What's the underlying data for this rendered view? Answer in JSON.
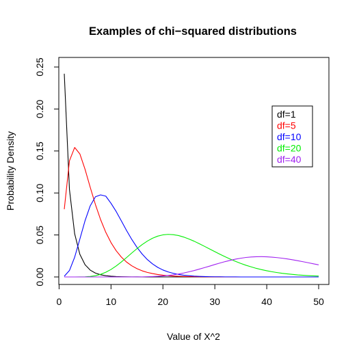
{
  "chart_data": {
    "type": "line",
    "title": "Examples of chi−squared distributions",
    "xlabel": "Value of X^2",
    "ylabel": "Probability Density",
    "xlim": [
      1,
      50
    ],
    "ylim": [
      0,
      0.25
    ],
    "x_ticks": [
      0,
      10,
      20,
      30,
      40,
      50
    ],
    "y_ticks": [
      0.0,
      0.05,
      0.1,
      0.15,
      0.2,
      0.25
    ],
    "x_tick_labels": [
      "0",
      "10",
      "20",
      "30",
      "40",
      "50"
    ],
    "y_tick_labels": [
      "0.00",
      "0.05",
      "0.10",
      "0.15",
      "0.20",
      "0.25"
    ],
    "grid": false,
    "legend_position": "top-right",
    "x": [
      1,
      2,
      3,
      4,
      5,
      6,
      7,
      8,
      9,
      10,
      11,
      12,
      13,
      14,
      15,
      16,
      17,
      18,
      19,
      20,
      21,
      22,
      23,
      24,
      25,
      26,
      27,
      28,
      29,
      30,
      31,
      32,
      33,
      34,
      35,
      36,
      37,
      38,
      39,
      40,
      41,
      42,
      43,
      44,
      45,
      46,
      47,
      48,
      49,
      50
    ],
    "series": [
      {
        "name": "df=1",
        "color": "#000000",
        "values": [
          0.242,
          0.104,
          0.0514,
          0.027,
          0.0146,
          0.0081,
          0.0046,
          0.0026,
          0.0015,
          0.0009,
          0.0005,
          0.0003,
          0.0002,
          0.0001,
          0.0001,
          0.0,
          0.0,
          0.0,
          0.0,
          0.0,
          0.0,
          0.0,
          0.0,
          0.0,
          0.0,
          0.0,
          0.0,
          0.0,
          0.0,
          0.0,
          0.0,
          0.0,
          0.0,
          0.0,
          0.0,
          0.0,
          0.0,
          0.0,
          0.0,
          0.0,
          0.0,
          0.0,
          0.0,
          0.0,
          0.0,
          0.0,
          0.0,
          0.0,
          0.0,
          0.0
        ]
      },
      {
        "name": "df=5",
        "color": "#ff0000",
        "values": [
          0.0807,
          0.1384,
          0.1542,
          0.1465,
          0.1282,
          0.1067,
          0.0862,
          0.0682,
          0.0531,
          0.0409,
          0.0312,
          0.0236,
          0.0177,
          0.0133,
          0.0099,
          0.0073,
          0.0054,
          0.004,
          0.0029,
          0.0021,
          0.0016,
          0.0011,
          0.0008,
          0.0006,
          0.0004,
          0.0003,
          0.0002,
          0.0002,
          0.0001,
          0.0001,
          0.0001,
          0.0,
          0.0,
          0.0,
          0.0,
          0.0,
          0.0,
          0.0,
          0.0,
          0.0,
          0.0,
          0.0,
          0.0,
          0.0,
          0.0,
          0.0,
          0.0,
          0.0,
          0.0,
          0.0
        ]
      },
      {
        "name": "df=10",
        "color": "#0000ff",
        "values": [
          0.0008,
          0.0077,
          0.0235,
          0.0451,
          0.067,
          0.0847,
          0.0955,
          0.0977,
          0.0962,
          0.0877,
          0.0779,
          0.0667,
          0.0553,
          0.0447,
          0.0353,
          0.0273,
          0.0207,
          0.0155,
          0.0114,
          0.0083,
          0.006,
          0.0043,
          0.003,
          0.0021,
          0.0015,
          0.001,
          0.0007,
          0.0005,
          0.0003,
          0.0002,
          0.0002,
          0.0001,
          0.0001,
          0.0001,
          0.0,
          0.0,
          0.0,
          0.0,
          0.0,
          0.0,
          0.0,
          0.0,
          0.0,
          0.0,
          0.0,
          0.0,
          0.0,
          0.0,
          0.0,
          0.0
        ]
      },
      {
        "name": "df=20",
        "color": "#00ee00",
        "values": [
          0.0,
          0.0,
          0.0,
          0.0001,
          0.0002,
          0.0006,
          0.0015,
          0.0031,
          0.0056,
          0.0089,
          0.0131,
          0.0179,
          0.0231,
          0.0285,
          0.0337,
          0.0385,
          0.0427,
          0.0461,
          0.0486,
          0.0501,
          0.0507,
          0.0503,
          0.0493,
          0.0475,
          0.0452,
          0.0426,
          0.0396,
          0.0365,
          0.0333,
          0.0301,
          0.027,
          0.024,
          0.0212,
          0.0185,
          0.0161,
          0.0139,
          0.012,
          0.0102,
          0.0087,
          0.0074,
          0.0062,
          0.0052,
          0.0043,
          0.0036,
          0.003,
          0.0024,
          0.002,
          0.0016,
          0.0013,
          0.0011
        ]
      },
      {
        "name": "df=40",
        "color": "#a020f0",
        "values": [
          0.0,
          0.0,
          0.0,
          0.0,
          0.0,
          0.0,
          0.0,
          0.0,
          0.0,
          0.0,
          0.0,
          0.0,
          0.0,
          0.0,
          0.0001,
          0.0001,
          0.0003,
          0.0005,
          0.0008,
          0.0012,
          0.0018,
          0.0025,
          0.0035,
          0.0047,
          0.0061,
          0.0076,
          0.0093,
          0.0111,
          0.0129,
          0.0148,
          0.0166,
          0.0183,
          0.0198,
          0.0212,
          0.0223,
          0.0232,
          0.0238,
          0.0241,
          0.0242,
          0.024,
          0.0236,
          0.023,
          0.0223,
          0.0214,
          0.0204,
          0.0193,
          0.0181,
          0.0169,
          0.0156,
          0.0144
        ]
      }
    ]
  }
}
